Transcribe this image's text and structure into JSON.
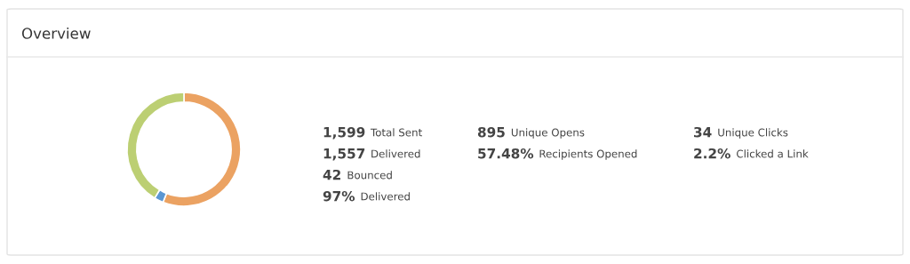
{
  "chart_data": [
    {
      "type": "donut",
      "title": "Overview",
      "categories": [
        null,
        null,
        null
      ],
      "values": [
        56.0,
        2.6,
        41.4
      ],
      "colors": [
        "#eba262",
        "#5b97d3",
        "#bccf73"
      ]
    },
    {
      "type": "other",
      "annotations": [
        "1,599",
        "Total Sent",
        "1,557",
        "Delivered",
        "42",
        "Bounced",
        "97%",
        "Delivered",
        "895",
        "Unique Opens",
        "57.48%",
        "Recipients Opened",
        "34",
        "Unique Clicks",
        "2.2%",
        "Clicked a Link"
      ]
    }
  ]
}
